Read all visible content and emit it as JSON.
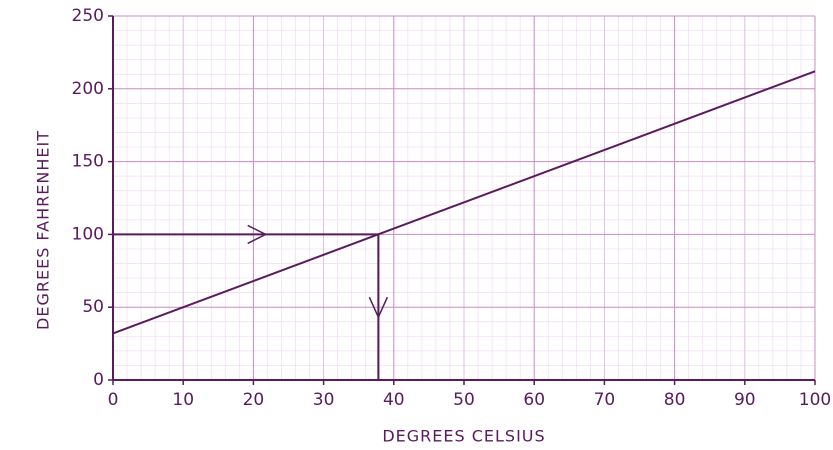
{
  "chart_data": {
    "type": "line",
    "x_label": "DEGREES CELSIUS",
    "y_label": "DEGREES FAHRENHEIT",
    "x": [
      0,
      100
    ],
    "series": [
      {
        "name": "Fahrenheit",
        "color": "#5a1a5e",
        "values": [
          32,
          212
        ]
      }
    ],
    "xlim": [
      0,
      100
    ],
    "xticks": [
      0,
      10,
      20,
      30,
      40,
      50,
      60,
      70,
      80,
      90,
      100
    ],
    "ylim": [
      0,
      250
    ],
    "yticks": [
      0,
      50,
      100,
      150,
      200,
      250
    ],
    "grid": true,
    "reading": {
      "x": 37.8,
      "y": 100
    }
  }
}
